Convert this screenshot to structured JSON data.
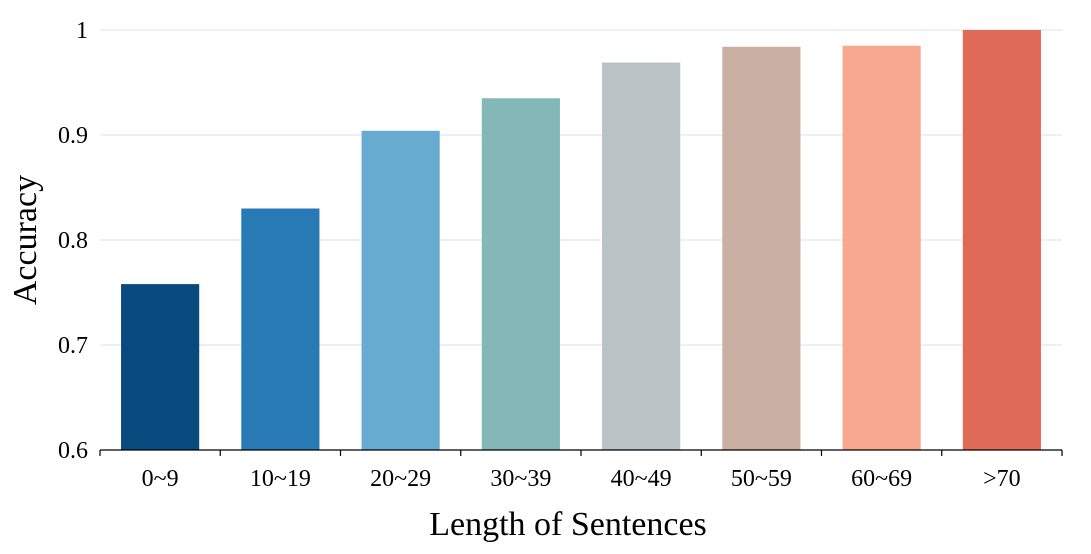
{
  "chart_data": {
    "type": "bar",
    "categories": [
      "0~9",
      "10~19",
      "20~29",
      "30~39",
      "40~49",
      "50~59",
      "60~69",
      ">70"
    ],
    "values": [
      0.758,
      0.83,
      0.904,
      0.935,
      0.969,
      0.984,
      0.985,
      1.0
    ],
    "colors": [
      "#08497e",
      "#287ab4",
      "#67abd0",
      "#84b7b7",
      "#b9c2c4",
      "#c9b0a2",
      "#f8a88f",
      "#e06a58"
    ],
    "xlabel": "Length of Sentences",
    "ylabel": "Accuracy",
    "ylim": [
      0.6,
      1.0
    ],
    "yticks": [
      0.6,
      0.7,
      0.8,
      0.9,
      1.0
    ],
    "ytick_labels": [
      "0.6",
      "0.7",
      "0.8",
      "0.9",
      "1"
    ],
    "grid": true,
    "legend": "none"
  }
}
